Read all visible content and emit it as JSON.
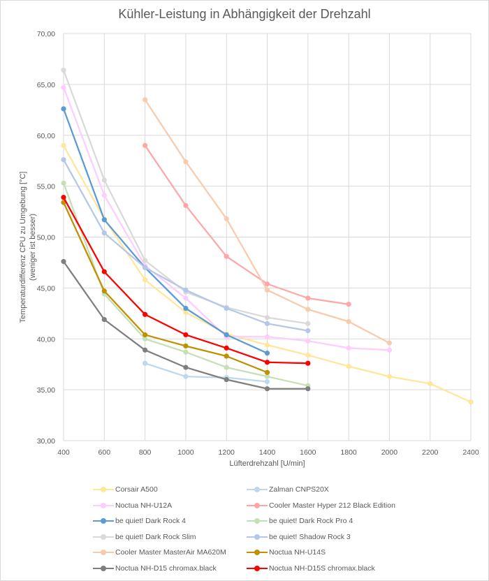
{
  "chart_data": {
    "type": "line",
    "title": "Kühler-Leistung in Abhängigkeit der Drehzahl",
    "xlabel": "Lüfterdrehzahl [U/min]",
    "ylabel": "Temperaturdifferenz CPU zu Umgebung [°C]",
    "ylabel_sub": "(weniger ist besser)",
    "xlim": [
      400,
      2400
    ],
    "ylim": [
      30,
      70
    ],
    "xticks": [
      400,
      600,
      800,
      1000,
      1200,
      1400,
      1600,
      1800,
      2000,
      2200,
      2400
    ],
    "yticks": [
      "30,00",
      "35,00",
      "40,00",
      "45,00",
      "50,00",
      "55,00",
      "60,00",
      "65,00",
      "70,00"
    ],
    "ytick_values": [
      30,
      35,
      40,
      45,
      50,
      55,
      60,
      65,
      70
    ],
    "grid": true,
    "legend_position": "bottom",
    "series": [
      {
        "name": "Corsair A500",
        "color": "#ffe699",
        "x": [
          400,
          600,
          800,
          1000,
          1200,
          1400,
          1600,
          1800,
          2000,
          2200,
          2400
        ],
        "values": [
          59.0,
          51.8,
          45.8,
          42.6,
          40.5,
          39.4,
          38.4,
          37.3,
          36.3,
          35.6,
          33.8
        ]
      },
      {
        "name": "Zalman CNPS20X",
        "color": "#bdd7ee",
        "x": [
          800,
          1000,
          1200,
          1400
        ],
        "values": [
          37.6,
          36.3,
          36.2,
          35.8
        ]
      },
      {
        "name": "Noctua NH-U12A",
        "color": "#ffccff",
        "x": [
          400,
          600,
          800,
          1000,
          1200,
          1400,
          1600,
          1800,
          2000
        ],
        "values": [
          64.7,
          54.1,
          47.2,
          44.0,
          40.2,
          40.2,
          39.8,
          39.1,
          38.9
        ]
      },
      {
        "name": "Cooler Master Hyper 212 Black Edition",
        "color": "#ffa7a7",
        "x": [
          800,
          1000,
          1200,
          1400,
          1600,
          1800
        ],
        "values": [
          59.0,
          53.1,
          48.1,
          45.4,
          44.0,
          43.4
        ]
      },
      {
        "name": "be quiet! Dark Rock 4",
        "color": "#5b9bd5",
        "x": [
          400,
          600,
          800,
          1000,
          1200,
          1400
        ],
        "values": [
          62.6,
          51.7,
          47.0,
          43.0,
          40.4,
          38.6
        ]
      },
      {
        "name": "be quiet! Dark Rock Pro 4",
        "color": "#c5e0b4",
        "x": [
          400,
          600,
          800,
          1000,
          1200,
          1400,
          1600
        ],
        "values": [
          55.3,
          44.4,
          40.0,
          38.7,
          37.2,
          36.3,
          35.4
        ]
      },
      {
        "name": "be quiet! Dark Rock Slim",
        "color": "#d9d9d9",
        "x": [
          400,
          600,
          800,
          1000,
          1200,
          1400,
          1600
        ],
        "values": [
          66.4,
          55.6,
          47.7,
          44.6,
          43.1,
          42.1,
          41.5
        ]
      },
      {
        "name": "be quiet! Shadow Rock 3",
        "color": "#b4c7e7",
        "x": [
          400,
          600,
          800,
          1000,
          1200,
          1400,
          1600
        ],
        "values": [
          57.6,
          50.4,
          47.0,
          44.8,
          43.0,
          41.5,
          40.8
        ]
      },
      {
        "name": "Cooler Master MasterAir MA620M",
        "color": "#f8cbad",
        "x": [
          800,
          1000,
          1200,
          1400,
          1600,
          1800,
          2000
        ],
        "values": [
          63.5,
          57.4,
          51.8,
          44.8,
          42.9,
          41.7,
          39.6
        ]
      },
      {
        "name": "Noctua NH-U14S",
        "color": "#bf9000",
        "x": [
          400,
          600,
          800,
          1000,
          1200,
          1400
        ],
        "values": [
          53.4,
          44.7,
          40.4,
          39.3,
          38.3,
          36.7
        ]
      },
      {
        "name": "Noctua NH-D15 chromax.black",
        "color": "#7f7f7f",
        "x": [
          400,
          600,
          800,
          1000,
          1200,
          1400,
          1600
        ],
        "values": [
          47.6,
          41.9,
          38.9,
          37.2,
          36.0,
          35.1,
          35.1
        ]
      },
      {
        "name": "Noctua NH-D15S chromax.black",
        "color": "#ff0000",
        "x": [
          400,
          600,
          800,
          1000,
          1200,
          1400,
          1600
        ],
        "values": [
          53.9,
          46.6,
          42.4,
          40.4,
          39.1,
          37.7,
          37.6
        ]
      }
    ]
  }
}
